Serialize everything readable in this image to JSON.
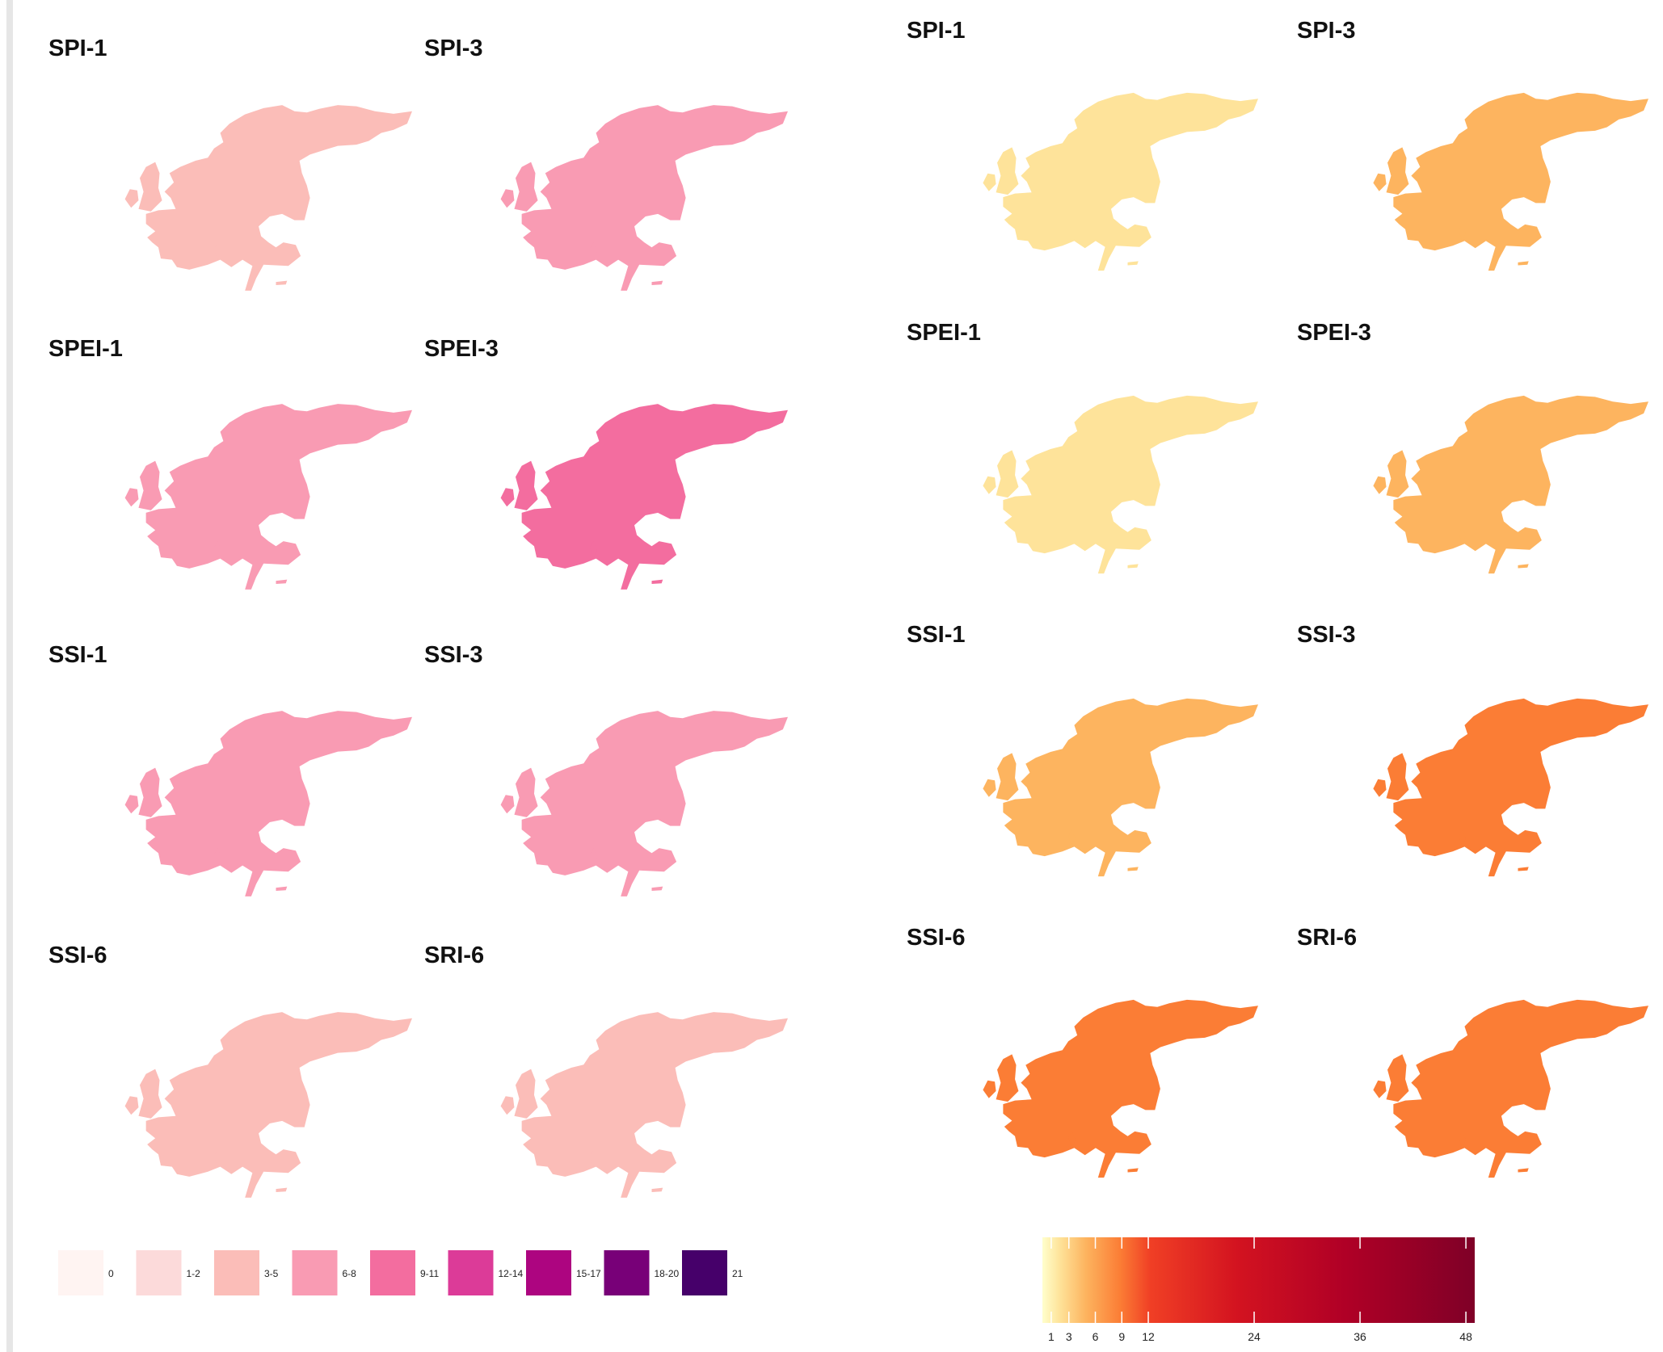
{
  "left_figure": {
    "panels": [
      "SPI-1",
      "SPI-3",
      "SPEI-1",
      "SPEI-3",
      "SSI-1",
      "SSI-3",
      "SSI-6",
      "SRI-6"
    ],
    "legend": {
      "labels": [
        "0",
        "1-2",
        "3-5",
        "6-8",
        "9-11",
        "12-14",
        "15-17",
        "18-20",
        "21"
      ],
      "colors": [
        "#fff4f2",
        "#fcdada",
        "#fbbdb8",
        "#f99bb3",
        "#f36d9f",
        "#dc3b98",
        "#ad0580",
        "#780078",
        "#46006a"
      ]
    },
    "intensity": [
      1,
      3,
      2,
      4,
      3,
      3,
      1,
      1
    ]
  },
  "right_figure": {
    "panels": [
      "SPI-1",
      "SPI-3",
      "SPEI-1",
      "SPEI-3",
      "SSI-1",
      "SSI-3",
      "SSI-6",
      "SRI-6"
    ],
    "colorbar": {
      "ticks": [
        "1",
        "3",
        "6",
        "9",
        "12",
        "24",
        "36",
        "48"
      ],
      "tick_values": [
        1,
        3,
        6,
        9,
        12,
        24,
        36,
        48
      ],
      "range": [
        0,
        49
      ],
      "colors": [
        "#ffffcc",
        "#fee39a",
        "#fdb45f",
        "#fb7d35",
        "#f03f25",
        "#d31320",
        "#b00026",
        "#7f0027"
      ]
    },
    "intensity": [
      1,
      2,
      1,
      2,
      2,
      3,
      4,
      4
    ]
  }
}
